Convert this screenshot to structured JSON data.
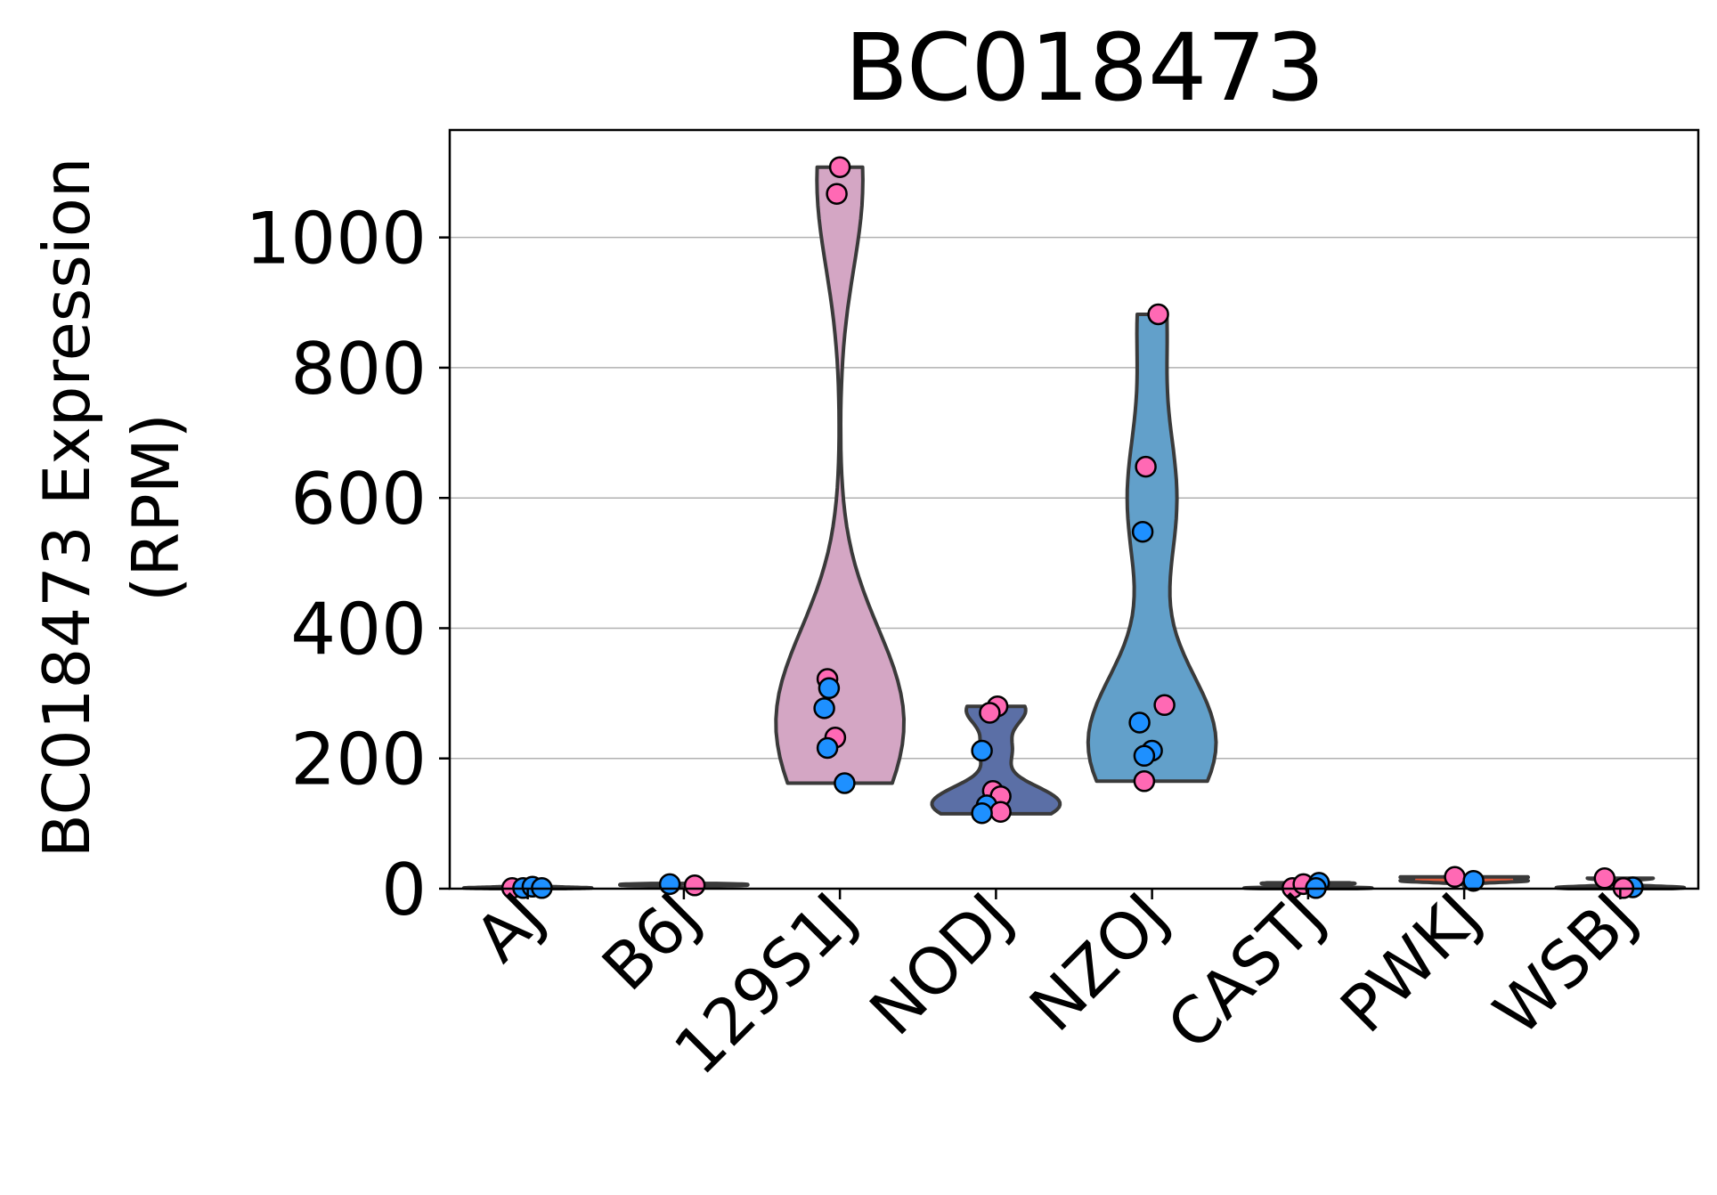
{
  "chart_data": {
    "type": "violin",
    "title": "BC018473",
    "ylabel_lines": [
      "BC018473 Expression",
      "(RPM)"
    ],
    "xlabel": "",
    "ylim": [
      0,
      1165
    ],
    "yticks": [
      0,
      200,
      400,
      600,
      800,
      1000
    ],
    "grid": "horizontal",
    "point_colors": {
      "pink": "#ff69b4",
      "blue": "#1e90ff"
    },
    "categories": [
      {
        "name": "AJ",
        "color": "#9a9a9a",
        "min": 0,
        "max": 4,
        "points": [
          {
            "v": 1,
            "c": "pink",
            "dx": -0.1
          },
          {
            "v": 1,
            "c": "blue",
            "dx": -0.03
          },
          {
            "v": 3,
            "c": "blue",
            "dx": 0.03
          },
          {
            "v": 1,
            "c": "blue",
            "dx": 0.09
          }
        ]
      },
      {
        "name": "B6J",
        "color": "#9a9a9a",
        "min": 1,
        "max": 8,
        "points": [
          {
            "v": 7,
            "c": "blue",
            "dx": -0.09
          },
          {
            "v": 5,
            "c": "pink",
            "dx": 0.07
          }
        ]
      },
      {
        "name": "129S1J",
        "color": "#d4a6c4",
        "min": 162,
        "max": 1108,
        "points": [
          {
            "v": 1108,
            "c": "pink",
            "dx": 0.0
          },
          {
            "v": 1067,
            "c": "pink",
            "dx": -0.02
          },
          {
            "v": 322,
            "c": "pink",
            "dx": -0.08
          },
          {
            "v": 308,
            "c": "blue",
            "dx": -0.07
          },
          {
            "v": 277,
            "c": "blue",
            "dx": -0.1
          },
          {
            "v": 232,
            "c": "pink",
            "dx": -0.03
          },
          {
            "v": 216,
            "c": "blue",
            "dx": -0.08
          },
          {
            "v": 162,
            "c": "blue",
            "dx": 0.03
          }
        ]
      },
      {
        "name": "NODJ",
        "color": "#5b6fa6",
        "min": 115,
        "max": 280,
        "points": [
          {
            "v": 280,
            "c": "pink",
            "dx": 0.01
          },
          {
            "v": 270,
            "c": "pink",
            "dx": -0.04
          },
          {
            "v": 212,
            "c": "blue",
            "dx": -0.09
          },
          {
            "v": 150,
            "c": "pink",
            "dx": -0.02
          },
          {
            "v": 142,
            "c": "pink",
            "dx": 0.03
          },
          {
            "v": 128,
            "c": "blue",
            "dx": -0.06
          },
          {
            "v": 118,
            "c": "pink",
            "dx": 0.03
          },
          {
            "v": 116,
            "c": "blue",
            "dx": -0.09
          }
        ]
      },
      {
        "name": "NZOJ",
        "color": "#62a0ca",
        "min": 165,
        "max": 882,
        "points": [
          {
            "v": 882,
            "c": "pink",
            "dx": 0.04
          },
          {
            "v": 648,
            "c": "pink",
            "dx": -0.04
          },
          {
            "v": 548,
            "c": "blue",
            "dx": -0.06
          },
          {
            "v": 282,
            "c": "pink",
            "dx": 0.08
          },
          {
            "v": 255,
            "c": "blue",
            "dx": -0.08
          },
          {
            "v": 212,
            "c": "blue",
            "dx": 0.0
          },
          {
            "v": 204,
            "c": "blue",
            "dx": -0.05
          },
          {
            "v": 165,
            "c": "pink",
            "dx": -0.05
          }
        ]
      },
      {
        "name": "CASTJ",
        "color": "#8a8a8a",
        "min": 0,
        "max": 9,
        "points": [
          {
            "v": 1,
            "c": "pink",
            "dx": -0.1
          },
          {
            "v": 7,
            "c": "pink",
            "dx": -0.03
          },
          {
            "v": 9,
            "c": "blue",
            "dx": 0.07
          },
          {
            "v": 1,
            "c": "blue",
            "dx": 0.05
          }
        ]
      },
      {
        "name": "PWKJ",
        "color": "#e05a3a",
        "min": 2,
        "max": 18,
        "points": [
          {
            "v": 18,
            "c": "pink",
            "dx": -0.06
          },
          {
            "v": 12,
            "c": "blue",
            "dx": 0.06
          }
        ]
      },
      {
        "name": "WSBJ",
        "color": "#8a8a8a",
        "min": 0,
        "max": 16,
        "points": [
          {
            "v": 16,
            "c": "pink",
            "dx": -0.1
          },
          {
            "v": 2,
            "c": "blue",
            "dx": 0.08
          },
          {
            "v": 1,
            "c": "pink",
            "dx": 0.02
          }
        ]
      }
    ]
  }
}
